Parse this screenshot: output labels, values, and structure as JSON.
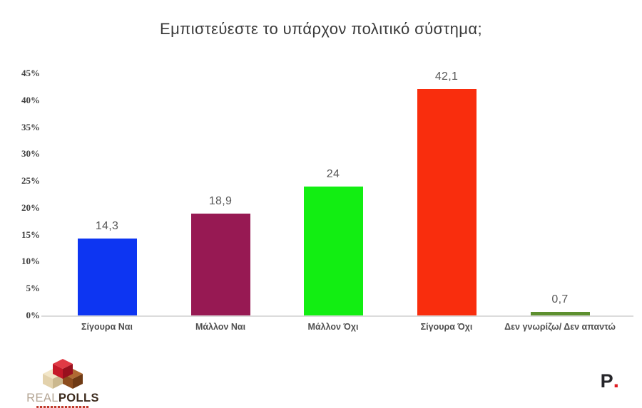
{
  "title": "Εμπιστεύεστε το υπάρχον πολιτικό σύστημα;",
  "chart_data": {
    "type": "bar",
    "title": "Εμπιστεύεστε το υπάρχον πολιτικό σύστημα;",
    "categories": [
      "Σίγουρα Ναι",
      "Μάλλον Ναι",
      "Μάλλον Όχι",
      "Σίγουρα Όχι",
      "Δεν γνωρίζω/ Δεν απαντώ"
    ],
    "values": [
      14.3,
      18.9,
      24,
      42.1,
      0.7
    ],
    "value_labels": [
      "14,3",
      "18,9",
      "24",
      "42,1",
      "0,7"
    ],
    "bar_colors": [
      "#0d35f2",
      "#971953",
      "#12ee12",
      "#f92d0d",
      "#5d8f2e"
    ],
    "xlabel": "",
    "ylabel": "",
    "ylim": [
      0,
      45
    ],
    "ytick_step": 5,
    "ytick_labels": [
      "0%",
      "5%",
      "10%",
      "15%",
      "20%",
      "25%",
      "30%",
      "35%",
      "40%",
      "45%"
    ],
    "grid": false,
    "legend": "none",
    "value_label_color": "#595959",
    "axis_line_color": "#dcdcdc"
  },
  "footer": {
    "realpolls": {
      "brand_real": "REAL",
      "brand_polls": "POLLS"
    },
    "protagon": {
      "letter": "P",
      "dot": "."
    }
  }
}
